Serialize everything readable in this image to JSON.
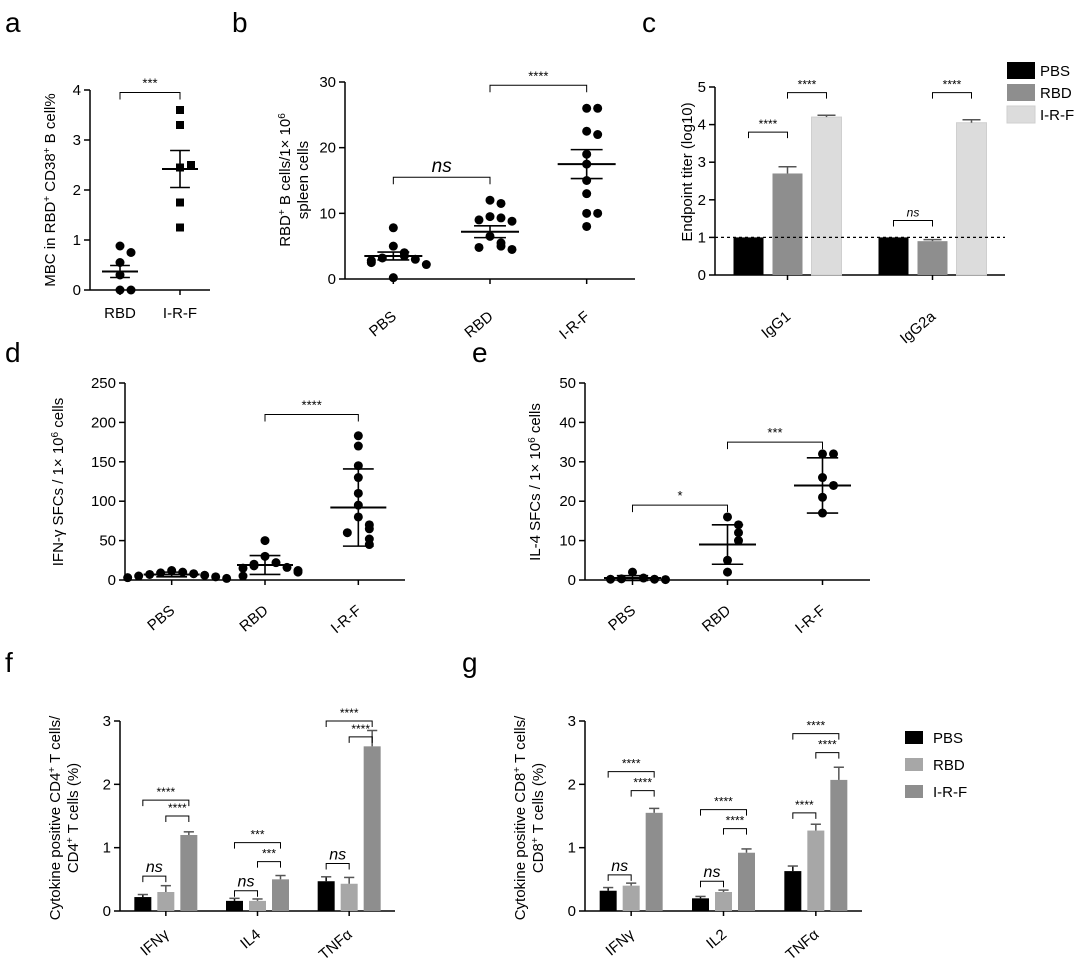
{
  "panel_letters": [
    "a",
    "b",
    "c",
    "d",
    "e",
    "f",
    "g"
  ],
  "chart_data": [
    {
      "panel": "a",
      "type": "scatter",
      "ylabel": "MBC in RBD⁺ CD38⁺ B cell%",
      "categories": [
        "RBD",
        "I-R-F"
      ],
      "ylim": [
        0,
        4
      ],
      "yticks": [
        0,
        1,
        2,
        3,
        4
      ],
      "series": [
        {
          "category": "RBD",
          "marker": "circle",
          "points": [
            0.88,
            0.75,
            0.55,
            0.3,
            0.0,
            0.0
          ],
          "mean": 0.37,
          "err": 0.12
        },
        {
          "category": "I-R-F",
          "marker": "square",
          "points": [
            3.6,
            3.3,
            2.45,
            2.5,
            1.75,
            1.25
          ],
          "mean": 2.42,
          "err": 0.37
        }
      ],
      "sig": [
        {
          "from": 0,
          "to": 1,
          "label": "***",
          "level": 3.95
        }
      ]
    },
    {
      "panel": "b",
      "type": "scatter",
      "ylabel": "RBD⁺ B cells/1× 10⁶ spleen cells",
      "categories": [
        "PBS",
        "RBD",
        "I-R-F"
      ],
      "ylim": [
        0,
        30
      ],
      "yticks": [
        0,
        10,
        20,
        30
      ],
      "series": [
        {
          "category": "PBS",
          "marker": "circle",
          "points": [
            7.8,
            5.0,
            4.0,
            3.5,
            3.2,
            3.0,
            2.8,
            2.5,
            2.2,
            0.2
          ],
          "mean": 3.5,
          "err": 0.6
        },
        {
          "category": "RBD",
          "marker": "circle",
          "points": [
            12.0,
            11.5,
            9.5,
            9.3,
            9.0,
            8.8,
            6.5,
            5.5,
            5.0,
            4.8,
            4.5
          ],
          "mean": 7.2,
          "err": 0.9
        },
        {
          "category": "I-R-F",
          "marker": "circle",
          "points": [
            26.0,
            26.0,
            22.5,
            22.0,
            19.0,
            17.5,
            15.0,
            13.0,
            10.0,
            10.0,
            8.0
          ],
          "mean": 17.5,
          "err": 2.2
        }
      ],
      "sig": [
        {
          "from": 0,
          "to": 1,
          "label": "ns",
          "level": 15.5
        },
        {
          "from": 1,
          "to": 2,
          "label": "****",
          "level": 29.5
        }
      ]
    },
    {
      "panel": "c",
      "type": "bar",
      "ylabel": "Endpoint titer (log10)",
      "categories": [
        "IgG1",
        "IgG2a"
      ],
      "ylim": [
        0,
        5
      ],
      "yticks": [
        0,
        1,
        2,
        3,
        4,
        5
      ],
      "series": [
        {
          "name": "PBS",
          "color": "#000000",
          "values": [
            1.0,
            1.0
          ],
          "errors": [
            0,
            0
          ]
        },
        {
          "name": "RBD",
          "color": "#8e8e8e",
          "values": [
            2.7,
            0.9
          ],
          "errors": [
            0.18,
            0.04
          ]
        },
        {
          "name": "I-R-F",
          "color": "#dcdcdc",
          "values": [
            4.2,
            4.05
          ],
          "errors": [
            0.05,
            0.08
          ]
        }
      ],
      "reference_line": 1,
      "legend_position": "right",
      "sig": [
        {
          "group": 0,
          "from": 0,
          "to": 1,
          "label": "****",
          "level": 3.8
        },
        {
          "group": 0,
          "from": 1,
          "to": 2,
          "label": "****",
          "level": 4.85
        },
        {
          "group": 1,
          "from": 0,
          "to": 1,
          "label": "ns",
          "level": 1.45
        },
        {
          "group": 1,
          "from": 1,
          "to": 2,
          "label": "****",
          "level": 4.85
        }
      ]
    },
    {
      "panel": "d",
      "type": "scatter",
      "ylabel": "IFN-γ SFCs / 1× 10⁶ cells",
      "categories": [
        "PBS",
        "RBD",
        "I-R-F"
      ],
      "ylim": [
        0,
        250
      ],
      "yticks": [
        0,
        50,
        100,
        150,
        200,
        250
      ],
      "series": [
        {
          "category": "PBS",
          "marker": "circle",
          "points": [
            12,
            10,
            9,
            8,
            7,
            6,
            5,
            4,
            3,
            2
          ],
          "mean": 7,
          "err": 3,
          "bar_style": "sd"
        },
        {
          "category": "RBD",
          "marker": "circle",
          "points": [
            50,
            30,
            22,
            20,
            18,
            16,
            15,
            12,
            10,
            5
          ],
          "mean": 19,
          "err": 12,
          "bar_style": "sd"
        },
        {
          "category": "I-R-F",
          "marker": "circle",
          "points": [
            183,
            170,
            145,
            130,
            110,
            95,
            80,
            70,
            65,
            60,
            52,
            45
          ],
          "mean": 92,
          "err": 49,
          "bar_style": "sd"
        }
      ],
      "sig": [
        {
          "from": 1,
          "to": 2,
          "label": "****",
          "level": 210
        }
      ]
    },
    {
      "panel": "e",
      "type": "scatter",
      "ylabel": "IL-4 SFCs / 1× 10⁶ cells",
      "categories": [
        "PBS",
        "RBD",
        "I-R-F"
      ],
      "ylim": [
        0,
        50
      ],
      "yticks": [
        0,
        10,
        20,
        30,
        40,
        50
      ],
      "series": [
        {
          "category": "PBS",
          "marker": "circle",
          "points": [
            2,
            0.5,
            0.3,
            0.2,
            0.2,
            0.1
          ],
          "mean": 0.5,
          "err": 0.6,
          "bar_style": "sd"
        },
        {
          "category": "RBD",
          "marker": "circle",
          "points": [
            16,
            14,
            12,
            10,
            5,
            2
          ],
          "mean": 9,
          "err": 5,
          "bar_style": "sd"
        },
        {
          "category": "I-R-F",
          "marker": "circle",
          "points": [
            32,
            32,
            26,
            24,
            21,
            17
          ],
          "mean": 24,
          "err": 7,
          "bar_style": "sd"
        }
      ],
      "sig": [
        {
          "from": 0,
          "to": 1,
          "label": "*",
          "level": 19
        },
        {
          "from": 1,
          "to": 2,
          "label": "***",
          "level": 35
        }
      ]
    },
    {
      "panel": "f",
      "type": "bar",
      "ylabel": "Cytokine positive CD4⁺ T cells/ CD4⁺ T cells (%)",
      "categories": [
        "IFNγ",
        "IL4",
        "TNFα"
      ],
      "ylim": [
        0,
        3
      ],
      "yticks": [
        0,
        1,
        2,
        3
      ],
      "series": [
        {
          "name": "PBS",
          "color": "#000000",
          "values": [
            0.22,
            0.16,
            0.47
          ],
          "errors": [
            0.04,
            0.04,
            0.07
          ]
        },
        {
          "name": "RBD",
          "color": "#a7a7a7",
          "values": [
            0.3,
            0.16,
            0.43
          ],
          "errors": [
            0.1,
            0.03,
            0.1
          ]
        },
        {
          "name": "I-R-F",
          "color": "#8e8e8e",
          "values": [
            1.2,
            0.5,
            2.6
          ],
          "errors": [
            0.05,
            0.06,
            0.25
          ]
        }
      ],
      "sig": [
        {
          "group": 0,
          "from": 0,
          "to": 1,
          "label": "ns",
          "level": 0.55
        },
        {
          "group": 0,
          "from": 0,
          "to": 2,
          "label": "****",
          "level": 1.75
        },
        {
          "group": 0,
          "from": 1,
          "to": 2,
          "label": "****",
          "level": 1.5
        },
        {
          "group": 1,
          "from": 0,
          "to": 1,
          "label": "ns",
          "level": 0.32
        },
        {
          "group": 1,
          "from": 0,
          "to": 2,
          "label": "***",
          "level": 1.08
        },
        {
          "group": 1,
          "from": 1,
          "to": 2,
          "label": "***",
          "level": 0.78
        },
        {
          "group": 2,
          "from": 0,
          "to": 1,
          "label": "ns",
          "level": 0.75
        },
        {
          "group": 2,
          "from": 0,
          "to": 2,
          "label": "****",
          "level": 3.0
        },
        {
          "group": 2,
          "from": 1,
          "to": 2,
          "label": "****",
          "level": 2.75
        }
      ]
    },
    {
      "panel": "g",
      "type": "bar",
      "ylabel": "Cytokine positive CD8⁺ T cells/ CD8⁺ T cells (%)",
      "categories": [
        "IFNγ",
        "IL2",
        "TNFα"
      ],
      "ylim": [
        0,
        3
      ],
      "yticks": [
        0,
        1,
        2,
        3
      ],
      "legend_position": "right",
      "series": [
        {
          "name": "PBS",
          "color": "#000000",
          "values": [
            0.32,
            0.2,
            0.63
          ],
          "errors": [
            0.05,
            0.03,
            0.08
          ]
        },
        {
          "name": "RBD",
          "color": "#a7a7a7",
          "values": [
            0.4,
            0.3,
            1.27
          ],
          "errors": [
            0.04,
            0.03,
            0.1
          ]
        },
        {
          "name": "I-R-F",
          "color": "#8e8e8e",
          "values": [
            1.55,
            0.92,
            2.07
          ],
          "errors": [
            0.07,
            0.06,
            0.2
          ]
        }
      ],
      "sig": [
        {
          "group": 0,
          "from": 0,
          "to": 1,
          "label": "ns",
          "level": 0.57
        },
        {
          "group": 0,
          "from": 0,
          "to": 2,
          "label": "****",
          "level": 2.2
        },
        {
          "group": 0,
          "from": 1,
          "to": 2,
          "label": "****",
          "level": 1.9
        },
        {
          "group": 1,
          "from": 0,
          "to": 1,
          "label": "ns",
          "level": 0.47
        },
        {
          "group": 1,
          "from": 0,
          "to": 2,
          "label": "****",
          "level": 1.6
        },
        {
          "group": 1,
          "from": 1,
          "to": 2,
          "label": "****",
          "level": 1.3
        },
        {
          "group": 2,
          "from": 0,
          "to": 1,
          "label": "****",
          "level": 1.55
        },
        {
          "group": 2,
          "from": 0,
          "to": 2,
          "label": "****",
          "level": 2.8
        },
        {
          "group": 2,
          "from": 1,
          "to": 2,
          "label": "****",
          "level": 2.5
        }
      ]
    }
  ]
}
